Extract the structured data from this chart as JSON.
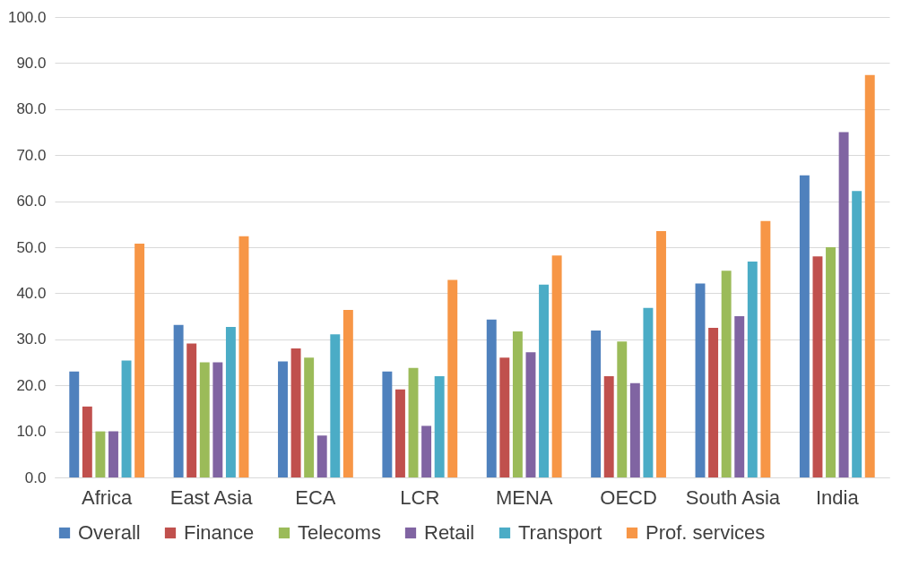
{
  "chart_data": {
    "type": "bar",
    "categories": [
      "Africa",
      "East Asia",
      "ECA",
      "LCR",
      "MENA",
      "OECD",
      "South Asia",
      "India"
    ],
    "series": [
      {
        "name": "Overall",
        "color": "#4f81bd",
        "values": [
          23,
          33.1,
          25.2,
          23,
          34.3,
          31.9,
          42.1,
          65.6
        ]
      },
      {
        "name": "Finance",
        "color": "#c0504d",
        "values": [
          15.4,
          29.1,
          28,
          19.1,
          26,
          22,
          32.5,
          48
        ]
      },
      {
        "name": "Telecoms",
        "color": "#9bbb59",
        "values": [
          10,
          25,
          26,
          23.8,
          31.7,
          29.5,
          44.9,
          50
        ]
      },
      {
        "name": "Retail",
        "color": "#8064a2",
        "values": [
          10,
          25,
          9.1,
          11.2,
          27.2,
          20.5,
          35,
          75
        ]
      },
      {
        "name": "Transport",
        "color": "#4bacc6",
        "values": [
          25.4,
          32.7,
          31.1,
          22,
          41.9,
          36.8,
          46.9,
          62.2
        ]
      },
      {
        "name": "Prof. services",
        "color": "#f79646",
        "values": [
          50.8,
          52.4,
          36.4,
          42.9,
          48.2,
          53.5,
          55.7,
          87.4
        ]
      }
    ],
    "ylim": [
      0,
      100
    ],
    "yticks": [
      {
        "value": 0,
        "label": "0.0"
      },
      {
        "value": 10,
        "label": "10.0"
      },
      {
        "value": 20,
        "label": "20.0"
      },
      {
        "value": 30,
        "label": "30.0"
      },
      {
        "value": 40,
        "label": "40.0"
      },
      {
        "value": 50,
        "label": "50.0"
      },
      {
        "value": 60,
        "label": "60.0"
      },
      {
        "value": 70,
        "label": "70.0"
      },
      {
        "value": 80,
        "label": "80.0"
      },
      {
        "value": 90,
        "label": "90.0"
      },
      {
        "value": 100,
        "label": "100.0"
      }
    ],
    "grid": "y",
    "legend": "bottom"
  }
}
